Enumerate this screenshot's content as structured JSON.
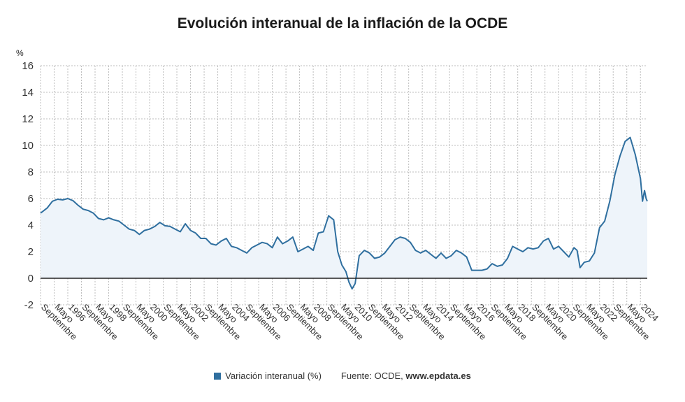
{
  "colors": {
    "line": "#2f6f9f",
    "fill": "#eef4fa",
    "grid": "#bdbdbd",
    "zero": "#222222"
  },
  "legend": {
    "series_label": "Variación interanual (%)",
    "source_prefix": "Fuente: OCDE,",
    "source_site": "www.epdata.es"
  },
  "chart_data": {
    "type": "area",
    "title": "Evolución interanual de la inflación de la OCDE",
    "ylabel": "%",
    "ylim": [
      -2,
      16
    ],
    "yticks": [
      -2,
      0,
      2,
      4,
      6,
      8,
      10,
      12,
      14,
      16
    ],
    "xlim": [
      1994.667,
      2024.333
    ],
    "grid": true,
    "xticks": [
      {
        "x": 1994.667,
        "label": "Septiembre"
      },
      {
        "x": 1995.333,
        "label": "Mayo"
      },
      {
        "x": 1996.0,
        "label": "1996"
      },
      {
        "x": 1996.667,
        "label": "Septiembre"
      },
      {
        "x": 1997.333,
        "label": "Mayo"
      },
      {
        "x": 1998.0,
        "label": "1998"
      },
      {
        "x": 1998.667,
        "label": "Septiembre"
      },
      {
        "x": 1999.333,
        "label": "Mayo"
      },
      {
        "x": 2000.0,
        "label": "2000"
      },
      {
        "x": 2000.667,
        "label": "Septiembre"
      },
      {
        "x": 2001.333,
        "label": "Mayo"
      },
      {
        "x": 2002.0,
        "label": "2002"
      },
      {
        "x": 2002.667,
        "label": "Septiembre"
      },
      {
        "x": 2003.333,
        "label": "Mayo"
      },
      {
        "x": 2004.0,
        "label": "2004"
      },
      {
        "x": 2004.667,
        "label": "Septiembre"
      },
      {
        "x": 2005.333,
        "label": "Mayo"
      },
      {
        "x": 2006.0,
        "label": "2006"
      },
      {
        "x": 2006.667,
        "label": "Septiembre"
      },
      {
        "x": 2007.333,
        "label": "Mayo"
      },
      {
        "x": 2008.0,
        "label": "2008"
      },
      {
        "x": 2008.667,
        "label": "Septiembre"
      },
      {
        "x": 2009.333,
        "label": "Mayo"
      },
      {
        "x": 2010.0,
        "label": "2010"
      },
      {
        "x": 2010.667,
        "label": "Septiembre"
      },
      {
        "x": 2011.333,
        "label": "Mayo"
      },
      {
        "x": 2012.0,
        "label": "2012"
      },
      {
        "x": 2012.667,
        "label": "Septiembre"
      },
      {
        "x": 2013.333,
        "label": "Mayo"
      },
      {
        "x": 2014.0,
        "label": "2014"
      },
      {
        "x": 2014.667,
        "label": "Septiembre"
      },
      {
        "x": 2015.333,
        "label": "Mayo"
      },
      {
        "x": 2016.0,
        "label": "2016"
      },
      {
        "x": 2016.667,
        "label": "Septiembre"
      },
      {
        "x": 2017.333,
        "label": "Mayo"
      },
      {
        "x": 2018.0,
        "label": "2018"
      },
      {
        "x": 2018.667,
        "label": "Septiembre"
      },
      {
        "x": 2019.333,
        "label": "Mayo"
      },
      {
        "x": 2020.0,
        "label": "2020"
      },
      {
        "x": 2020.667,
        "label": "Septiembre"
      },
      {
        "x": 2021.333,
        "label": "Mayo"
      },
      {
        "x": 2022.0,
        "label": "2022"
      },
      {
        "x": 2022.667,
        "label": "Septiembre"
      },
      {
        "x": 2023.333,
        "label": "Mayo"
      },
      {
        "x": 2024.0,
        "label": "2024"
      }
    ],
    "series": [
      {
        "name": "Variación interanual (%)",
        "points": [
          [
            1994.667,
            4.9
          ],
          [
            1995.0,
            5.3
          ],
          [
            1995.25,
            5.8
          ],
          [
            1995.5,
            5.95
          ],
          [
            1995.75,
            5.9
          ],
          [
            1996.0,
            6.0
          ],
          [
            1996.25,
            5.85
          ],
          [
            1996.5,
            5.5
          ],
          [
            1996.75,
            5.2
          ],
          [
            1997.0,
            5.1
          ],
          [
            1997.25,
            4.9
          ],
          [
            1997.5,
            4.5
          ],
          [
            1997.75,
            4.4
          ],
          [
            1998.0,
            4.55
          ],
          [
            1998.25,
            4.4
          ],
          [
            1998.5,
            4.3
          ],
          [
            1998.75,
            4.0
          ],
          [
            1999.0,
            3.7
          ],
          [
            1999.25,
            3.6
          ],
          [
            1999.5,
            3.3
          ],
          [
            1999.75,
            3.6
          ],
          [
            2000.0,
            3.7
          ],
          [
            2000.25,
            3.9
          ],
          [
            2000.5,
            4.2
          ],
          [
            2000.75,
            3.95
          ],
          [
            2001.0,
            3.9
          ],
          [
            2001.25,
            3.7
          ],
          [
            2001.5,
            3.5
          ],
          [
            2001.75,
            4.1
          ],
          [
            2002.0,
            3.6
          ],
          [
            2002.25,
            3.4
          ],
          [
            2002.5,
            3.0
          ],
          [
            2002.75,
            3.0
          ],
          [
            2003.0,
            2.6
          ],
          [
            2003.25,
            2.5
          ],
          [
            2003.5,
            2.8
          ],
          [
            2003.75,
            3.0
          ],
          [
            2004.0,
            2.4
          ],
          [
            2004.25,
            2.3
          ],
          [
            2004.5,
            2.1
          ],
          [
            2004.75,
            1.9
          ],
          [
            2005.0,
            2.3
          ],
          [
            2005.25,
            2.5
          ],
          [
            2005.5,
            2.7
          ],
          [
            2005.75,
            2.6
          ],
          [
            2006.0,
            2.3
          ],
          [
            2006.25,
            3.1
          ],
          [
            2006.5,
            2.6
          ],
          [
            2006.75,
            2.8
          ],
          [
            2007.0,
            3.1
          ],
          [
            2007.25,
            2.0
          ],
          [
            2007.5,
            2.2
          ],
          [
            2007.75,
            2.4
          ],
          [
            2008.0,
            2.1
          ],
          [
            2008.25,
            3.4
          ],
          [
            2008.5,
            3.5
          ],
          [
            2008.75,
            4.7
          ],
          [
            2009.0,
            4.4
          ],
          [
            2009.2,
            2.0
          ],
          [
            2009.4,
            1.0
          ],
          [
            2009.6,
            0.5
          ],
          [
            2009.75,
            -0.3
          ],
          [
            2009.9,
            -0.8
          ],
          [
            2010.05,
            -0.4
          ],
          [
            2010.25,
            1.7
          ],
          [
            2010.5,
            2.1
          ],
          [
            2010.75,
            1.9
          ],
          [
            2011.0,
            1.5
          ],
          [
            2011.25,
            1.6
          ],
          [
            2011.5,
            1.9
          ],
          [
            2011.75,
            2.4
          ],
          [
            2012.0,
            2.9
          ],
          [
            2012.25,
            3.1
          ],
          [
            2012.5,
            3.0
          ],
          [
            2012.75,
            2.7
          ],
          [
            2013.0,
            2.1
          ],
          [
            2013.25,
            1.9
          ],
          [
            2013.5,
            2.1
          ],
          [
            2013.75,
            1.8
          ],
          [
            2014.0,
            1.5
          ],
          [
            2014.25,
            1.9
          ],
          [
            2014.5,
            1.5
          ],
          [
            2014.75,
            1.7
          ],
          [
            2015.0,
            2.1
          ],
          [
            2015.25,
            1.9
          ],
          [
            2015.5,
            1.6
          ],
          [
            2015.75,
            0.6
          ],
          [
            2016.0,
            0.6
          ],
          [
            2016.25,
            0.6
          ],
          [
            2016.5,
            0.7
          ],
          [
            2016.75,
            1.1
          ],
          [
            2017.0,
            0.9
          ],
          [
            2017.25,
            1.0
          ],
          [
            2017.5,
            1.5
          ],
          [
            2017.75,
            2.4
          ],
          [
            2018.0,
            2.2
          ],
          [
            2018.25,
            2.0
          ],
          [
            2018.5,
            2.3
          ],
          [
            2018.75,
            2.2
          ],
          [
            2019.0,
            2.3
          ],
          [
            2019.25,
            2.8
          ],
          [
            2019.5,
            3.0
          ],
          [
            2019.75,
            2.2
          ],
          [
            2020.0,
            2.4
          ],
          [
            2020.25,
            2.0
          ],
          [
            2020.5,
            1.6
          ],
          [
            2020.75,
            2.3
          ],
          [
            2020.9,
            2.1
          ],
          [
            2021.05,
            0.8
          ],
          [
            2021.25,
            1.2
          ],
          [
            2021.5,
            1.3
          ],
          [
            2021.75,
            1.9
          ],
          [
            2022.0,
            3.8
          ],
          [
            2022.25,
            4.3
          ],
          [
            2022.5,
            5.8
          ],
          [
            2022.75,
            7.8
          ],
          [
            2023.0,
            9.2
          ],
          [
            2023.25,
            10.3
          ],
          [
            2023.5,
            10.6
          ],
          [
            2023.75,
            9.3
          ],
          [
            2024.0,
            7.5
          ],
          [
            2024.1,
            5.8
          ],
          [
            2024.2,
            6.6
          ],
          [
            2024.28,
            6.0
          ],
          [
            2024.333,
            5.8
          ]
        ]
      }
    ]
  }
}
